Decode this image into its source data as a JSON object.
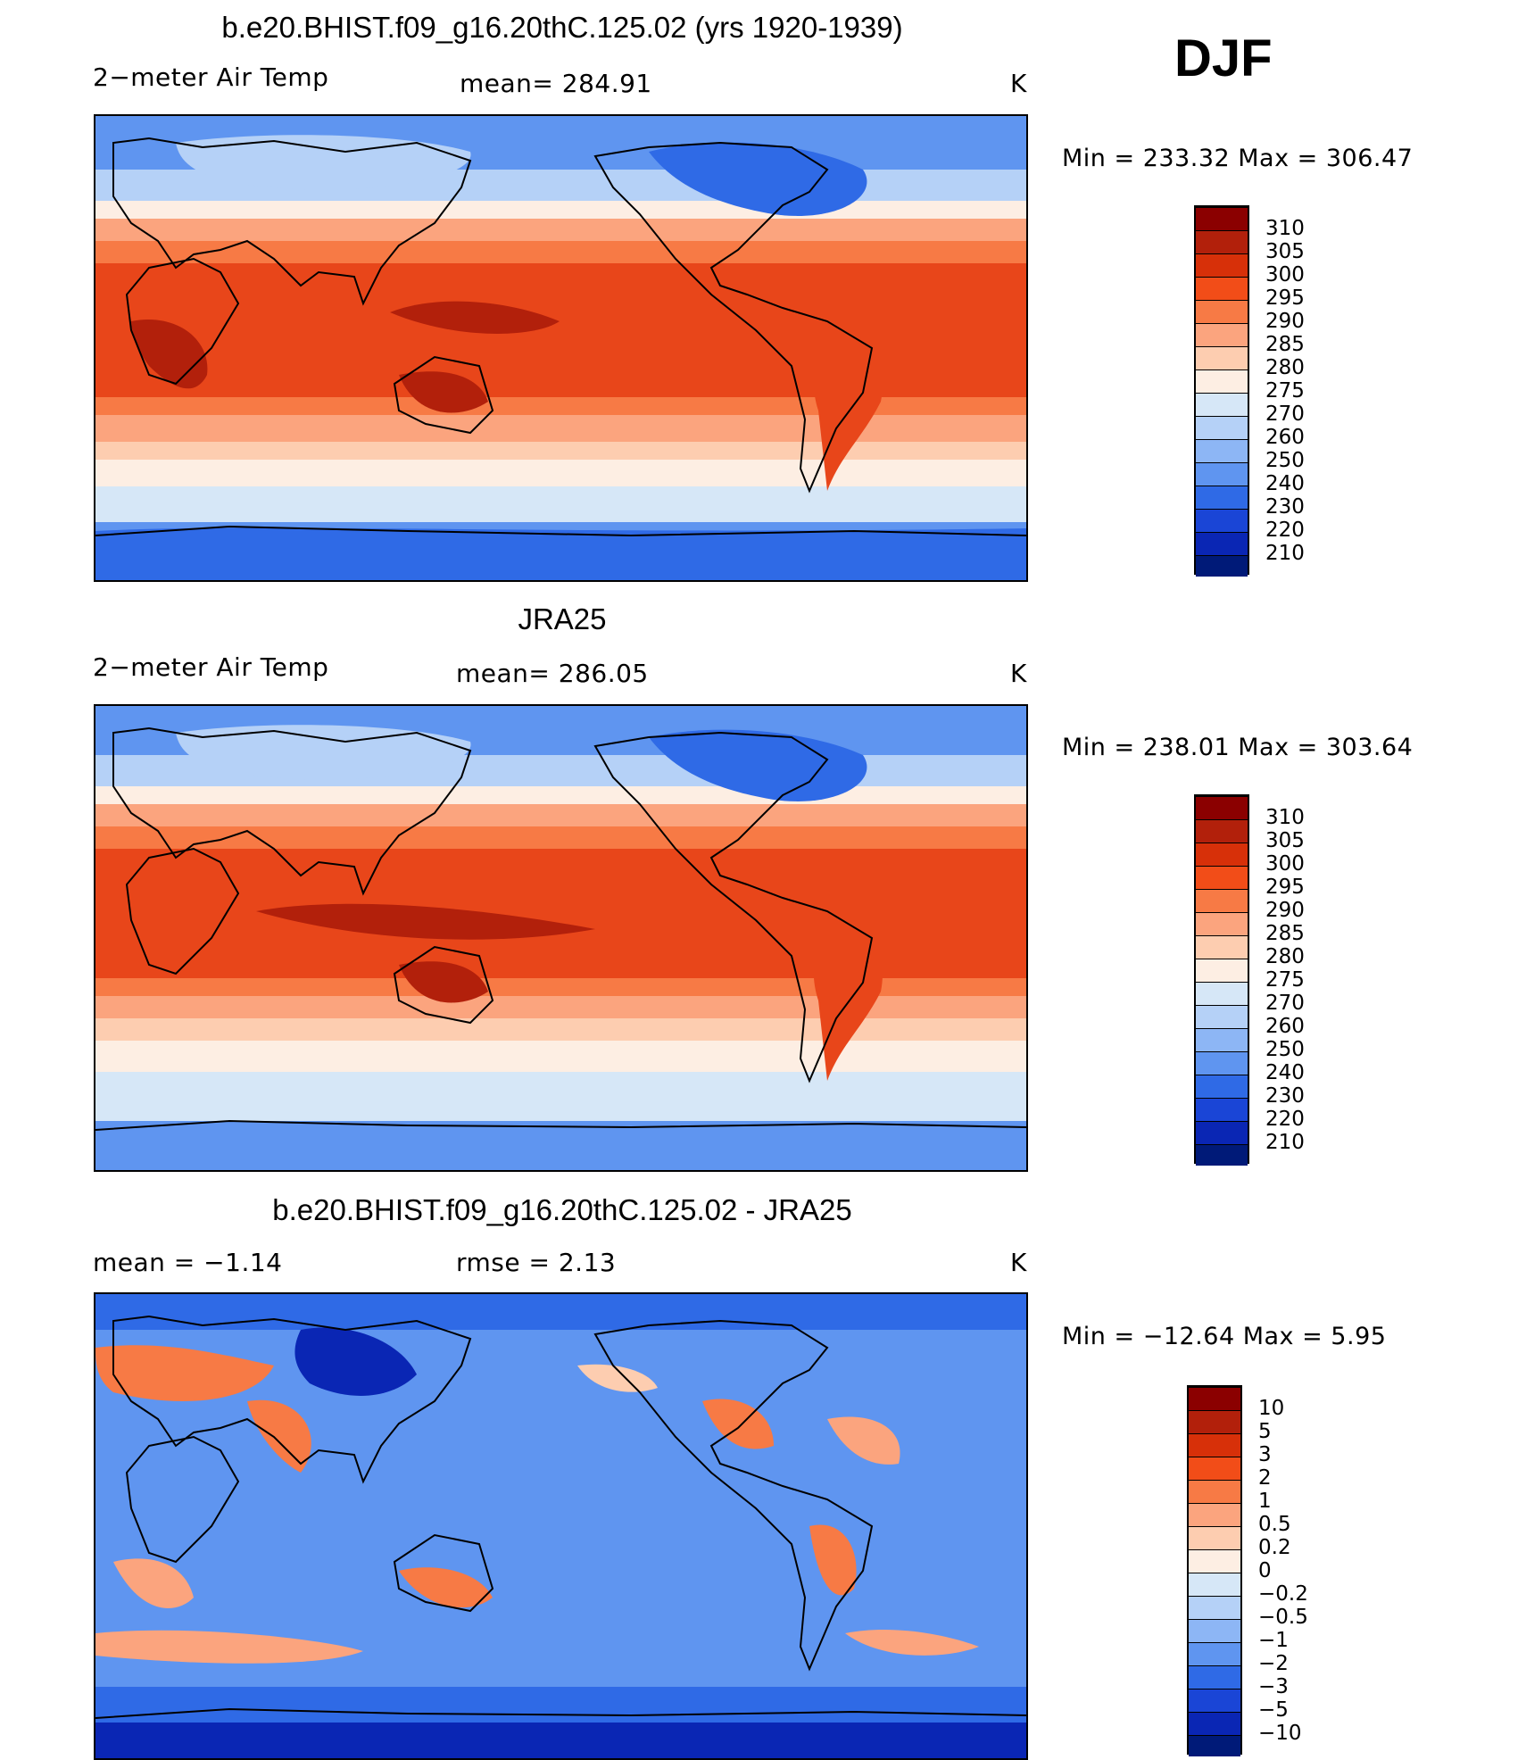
{
  "season": "DJF",
  "panels": [
    {
      "title": "b.e20.BHIST.f09_g16.20thC.125.02 (yrs 1920-1939)",
      "left_label": "2−meter Air Temp",
      "center_label": "mean=  284.91",
      "units": "K",
      "minmax": "Min  =  233.32  Max  =  306.47",
      "colorbar_labels": [
        "310",
        "305",
        "300",
        "295",
        "290",
        "285",
        "280",
        "275",
        "270",
        "260",
        "250",
        "240",
        "230",
        "220",
        "210"
      ]
    },
    {
      "title": "JRA25",
      "left_label": "2−meter Air Temp",
      "center_label": "mean=  286.05",
      "units": "K",
      "minmax": "Min  =  238.01  Max  =  303.64",
      "colorbar_labels": [
        "310",
        "305",
        "300",
        "295",
        "290",
        "285",
        "280",
        "275",
        "270",
        "260",
        "250",
        "240",
        "230",
        "220",
        "210"
      ]
    },
    {
      "title": "b.e20.BHIST.f09_g16.20thC.125.02 - JRA25",
      "left_label": "mean  =    −1.14",
      "center_label": "rmse  =     2.13",
      "units": "K",
      "minmax": "Min  =  −12.64  Max  =       5.95",
      "colorbar_labels": [
        "10",
        "5",
        "3",
        "2",
        "1",
        "0.5",
        "0.2",
        "0",
        "−0.2",
        "−0.5",
        "−1",
        "−2",
        "−3",
        "−5",
        "−10"
      ]
    }
  ],
  "colorbar_colors": [
    "#8b0000",
    "#b2200b",
    "#d73009",
    "#f24d18",
    "#f77a45",
    "#fba47e",
    "#fdcdb0",
    "#fdeee3",
    "#d6e7f7",
    "#b5d1f7",
    "#8db6f5",
    "#5f95f0",
    "#2f6ae6",
    "#1a45d6",
    "#0a26b4",
    "#001a78"
  ],
  "color_scale": {
    "deep_red": "#b2200b",
    "red": "#e8461a",
    "orange": "#f77a45",
    "salmon": "#fba47e",
    "peach": "#fdcdb0",
    "pale": "#fdeee3",
    "pale_blue": "#d6e7f7",
    "light_blue": "#b5d1f7",
    "blue": "#5f95f0",
    "mid_blue": "#2f6ae6",
    "dark_blue": "#0a26b4"
  }
}
